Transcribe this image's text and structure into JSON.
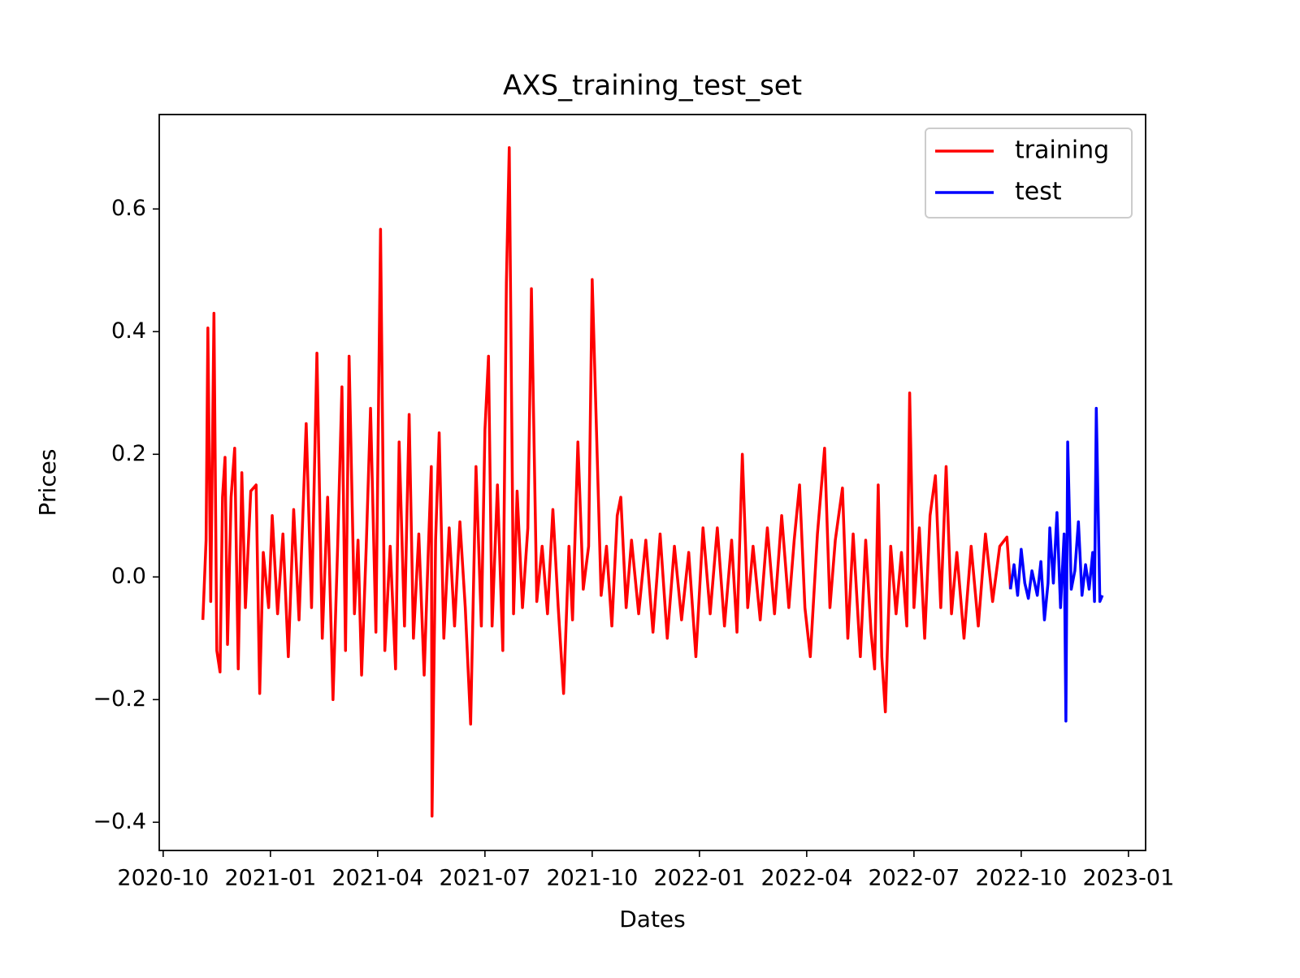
{
  "chart_data": {
    "type": "line",
    "title": "AXS_training_test_set",
    "x_label": "Dates",
    "y_label": "Prices",
    "xlim": [
      -0.11,
      27.48
    ],
    "xticks": [
      {
        "value": 0,
        "label": "2020-10"
      },
      {
        "value": 3,
        "label": "2021-01"
      },
      {
        "value": 6,
        "label": "2021-04"
      },
      {
        "value": 9,
        "label": "2021-07"
      },
      {
        "value": 12,
        "label": "2021-10"
      },
      {
        "value": 15,
        "label": "2022-01"
      },
      {
        "value": 18,
        "label": "2022-04"
      },
      {
        "value": 21,
        "label": "2022-07"
      },
      {
        "value": 24,
        "label": "2022-10"
      },
      {
        "value": 27,
        "label": "2023-01"
      }
    ],
    "ylim": [
      -0.446,
      0.754
    ],
    "yticks": [
      {
        "value": -0.4,
        "label": "−0.4"
      },
      {
        "value": -0.2,
        "label": "−0.2"
      },
      {
        "value": 0,
        "label": "0.0"
      },
      0.2,
      0.4,
      0.6
    ],
    "legend": "upper right",
    "series": [
      {
        "name": "training",
        "color": "#ff0000",
        "x": [
          1.11,
          1.2,
          1.25,
          1.33,
          1.42,
          1.5,
          1.59,
          1.66,
          1.73,
          1.8,
          1.9,
          2.0,
          2.1,
          2.2,
          2.3,
          2.45,
          2.6,
          2.7,
          2.8,
          2.95,
          3.05,
          3.2,
          3.35,
          3.5,
          3.65,
          3.8,
          4.0,
          4.15,
          4.3,
          4.45,
          4.6,
          4.75,
          4.88,
          5.0,
          5.1,
          5.2,
          5.35,
          5.45,
          5.55,
          5.68,
          5.8,
          5.95,
          6.08,
          6.2,
          6.35,
          6.5,
          6.6,
          6.75,
          6.88,
          7.0,
          7.15,
          7.3,
          7.42,
          7.5,
          7.52,
          7.62,
          7.72,
          7.85,
          8.0,
          8.15,
          8.3,
          8.45,
          8.6,
          8.75,
          8.9,
          9.0,
          9.1,
          9.2,
          9.35,
          9.5,
          9.6,
          9.68,
          9.8,
          9.9,
          10.05,
          10.2,
          10.3,
          10.45,
          10.6,
          10.75,
          10.9,
          11.05,
          11.2,
          11.35,
          11.45,
          11.6,
          11.75,
          11.9,
          12.0,
          12.1,
          12.25,
          12.4,
          12.55,
          12.7,
          12.8,
          12.95,
          13.1,
          13.3,
          13.5,
          13.7,
          13.9,
          14.1,
          14.3,
          14.5,
          14.7,
          14.9,
          15.1,
          15.3,
          15.5,
          15.7,
          15.9,
          16.05,
          16.2,
          16.35,
          16.5,
          16.7,
          16.9,
          17.1,
          17.3,
          17.5,
          17.65,
          17.8,
          17.95,
          18.1,
          18.3,
          18.5,
          18.65,
          18.8,
          19.0,
          19.15,
          19.3,
          19.5,
          19.65,
          19.8,
          19.9,
          20.0,
          20.1,
          20.2,
          20.35,
          20.5,
          20.65,
          20.8,
          20.88,
          21.0,
          21.15,
          21.3,
          21.45,
          21.6,
          21.75,
          21.9,
          22.05,
          22.2,
          22.4,
          22.6,
          22.8,
          23.0,
          23.2,
          23.4,
          23.6,
          23.7
        ],
        "values": [
          -0.07,
          0.06,
          0.406,
          -0.04,
          0.43,
          -0.12,
          -0.155,
          0.13,
          0.195,
          -0.11,
          0.13,
          0.21,
          -0.15,
          0.17,
          -0.05,
          0.14,
          0.15,
          -0.19,
          0.04,
          -0.05,
          0.1,
          -0.06,
          0.07,
          -0.13,
          0.11,
          -0.07,
          0.25,
          -0.05,
          0.365,
          -0.1,
          0.13,
          -0.2,
          0.05,
          0.31,
          -0.12,
          0.36,
          -0.06,
          0.06,
          -0.16,
          0.05,
          0.275,
          -0.09,
          0.567,
          -0.12,
          0.05,
          -0.15,
          0.22,
          -0.08,
          0.265,
          -0.1,
          0.07,
          -0.16,
          0.05,
          0.18,
          -0.39,
          0.06,
          0.235,
          -0.1,
          0.08,
          -0.08,
          0.09,
          -0.05,
          -0.24,
          0.18,
          -0.08,
          0.24,
          0.36,
          -0.08,
          0.15,
          -0.12,
          0.48,
          0.7,
          -0.06,
          0.14,
          -0.05,
          0.08,
          0.47,
          -0.04,
          0.05,
          -0.06,
          0.11,
          -0.05,
          -0.19,
          0.05,
          -0.07,
          0.22,
          -0.02,
          0.05,
          0.485,
          0.28,
          -0.03,
          0.05,
          -0.08,
          0.1,
          0.13,
          -0.05,
          0.06,
          -0.06,
          0.06,
          -0.09,
          0.07,
          -0.1,
          0.05,
          -0.07,
          0.04,
          -0.13,
          0.08,
          -0.06,
          0.08,
          -0.08,
          0.06,
          -0.09,
          0.2,
          -0.05,
          0.05,
          -0.07,
          0.08,
          -0.06,
          0.1,
          -0.05,
          0.06,
          0.15,
          -0.05,
          -0.13,
          0.07,
          0.21,
          -0.05,
          0.06,
          0.145,
          -0.1,
          0.07,
          -0.13,
          0.06,
          -0.09,
          -0.15,
          0.15,
          -0.13,
          -0.22,
          0.05,
          -0.06,
          0.04,
          -0.08,
          0.3,
          -0.05,
          0.08,
          -0.1,
          0.1,
          0.165,
          -0.05,
          0.18,
          -0.06,
          0.04,
          -0.1,
          0.05,
          -0.08,
          0.07,
          -0.04,
          0.05,
          0.065,
          -0.02
        ]
      },
      {
        "name": "test",
        "color": "#0000ff",
        "x": [
          23.7,
          23.8,
          23.9,
          24.0,
          24.1,
          24.2,
          24.3,
          24.45,
          24.55,
          24.65,
          24.75,
          24.8,
          24.9,
          25.0,
          25.1,
          25.2,
          25.25,
          25.3,
          25.4,
          25.5,
          25.6,
          25.7,
          25.8,
          25.9,
          26.0,
          26.05,
          26.1,
          26.2,
          26.27
        ],
        "values": [
          -0.02,
          0.02,
          -0.03,
          0.045,
          -0.01,
          -0.035,
          0.01,
          -0.03,
          0.025,
          -0.07,
          -0.01,
          0.08,
          -0.01,
          0.105,
          -0.05,
          0.07,
          -0.235,
          0.22,
          -0.02,
          0.01,
          0.09,
          -0.03,
          0.02,
          -0.02,
          0.04,
          -0.04,
          0.275,
          -0.04,
          -0.03
        ]
      }
    ]
  }
}
